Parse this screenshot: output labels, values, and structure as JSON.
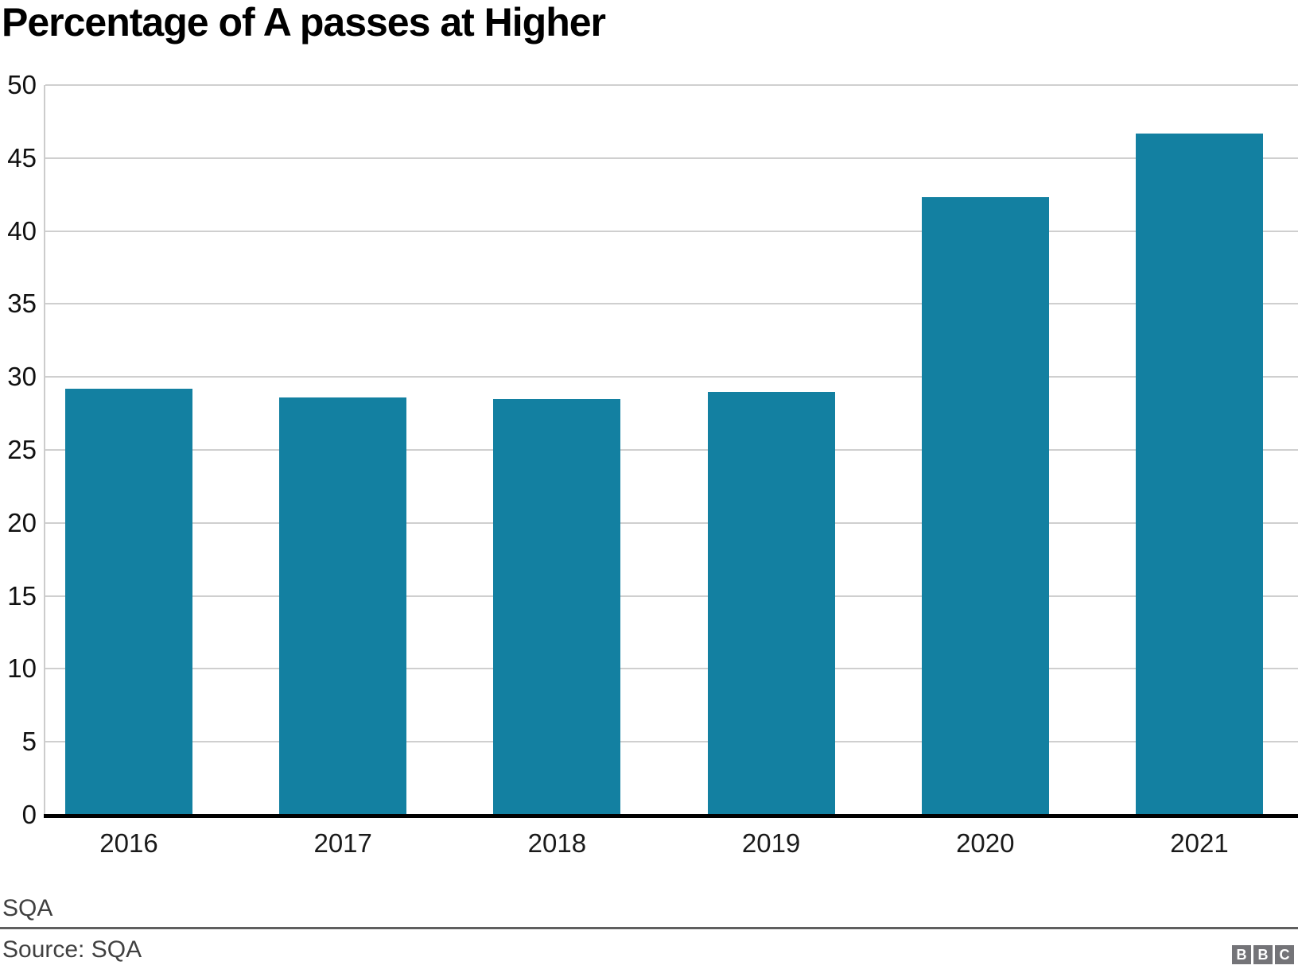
{
  "title": "Percentage of A passes at Higher",
  "chart_data": {
    "type": "bar",
    "categories": [
      "2016",
      "2017",
      "2018",
      "2019",
      "2020",
      "2021"
    ],
    "values": [
      29.2,
      28.6,
      28.5,
      29.0,
      42.3,
      46.7
    ],
    "title": "Percentage of A passes at Higher",
    "xlabel": "",
    "ylabel": "",
    "ylim": [
      0,
      50
    ],
    "yticks": [
      0,
      5,
      10,
      15,
      20,
      25,
      30,
      35,
      40,
      45,
      50
    ],
    "grid": true,
    "legend": "none",
    "bar_color": "#1380A1"
  },
  "footer": {
    "annotation": "SQA",
    "source": "Source: SQA",
    "logo_letters": [
      "B",
      "B",
      "C"
    ]
  },
  "colors": {
    "bar": "#1380A1",
    "gridline": "#cfcfcf",
    "baseline": "#000000",
    "footer_text": "#404040",
    "logo_block": "#747478"
  }
}
